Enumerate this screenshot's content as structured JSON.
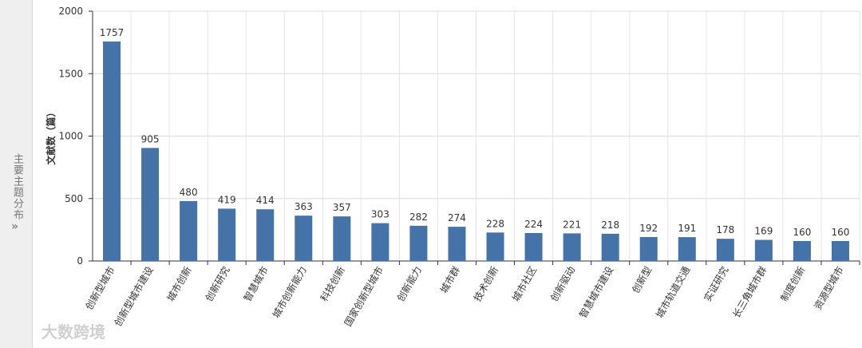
{
  "sidebar": {
    "label": "主要主题分布"
  },
  "watermark": "大数跨境",
  "chart_data": {
    "type": "bar",
    "y_label": "文献数（篇）",
    "categories": [
      "创新型城市",
      "创新型城市建设",
      "城市创新",
      "创新研究",
      "智慧城市",
      "城市创新能力",
      "科技创新",
      "国家创新型城市",
      "创新能力",
      "城市群",
      "技术创新",
      "城市社区",
      "创新驱动",
      "智慧城市建设",
      "创新型",
      "城市轨道交通",
      "实证研究",
      "长三角城市群",
      "制度创新",
      "资源型城市"
    ],
    "values": [
      1757,
      905,
      480,
      419,
      414,
      363,
      357,
      303,
      282,
      274,
      228,
      224,
      221,
      218,
      192,
      191,
      178,
      169,
      160,
      160
    ],
    "color": "#4572a7",
    "ylim": [
      0,
      2000
    ],
    "yticks": [
      0,
      500,
      1000,
      1500,
      2000
    ],
    "grid": true
  }
}
